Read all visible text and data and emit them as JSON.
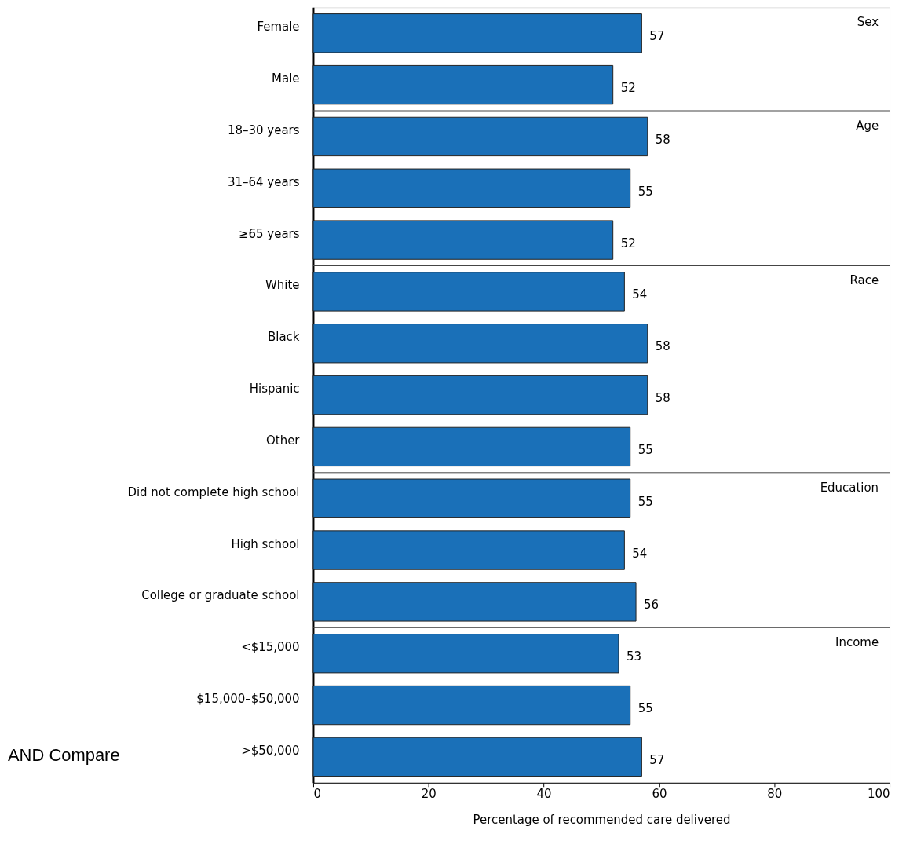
{
  "chart_data": {
    "type": "bar",
    "orientation": "horizontal",
    "xlabel": "Percentage of recommended care delivered",
    "categories": [
      "Female",
      "Male",
      "18–30 years",
      "31–64 years",
      "≥65 years",
      "White",
      "Black",
      "Hispanic",
      "Other",
      "Did not complete high school",
      "High school",
      "College or graduate school",
      "<$15,000",
      "$15,000–$50,000",
      ">$50,000"
    ],
    "values": [
      57,
      52,
      58,
      55,
      52,
      54,
      58,
      58,
      55,
      55,
      54,
      56,
      53,
      55,
      57
    ],
    "color": "#1a70b8",
    "xlim": [
      0,
      100
    ],
    "xticks": [
      0,
      20,
      40,
      60,
      80,
      100
    ],
    "grid": false,
    "data_labels": true,
    "annotations": [
      "Sex",
      "Age",
      "Race",
      "Education",
      "Income",
      "AND Compare"
    ]
  }
}
